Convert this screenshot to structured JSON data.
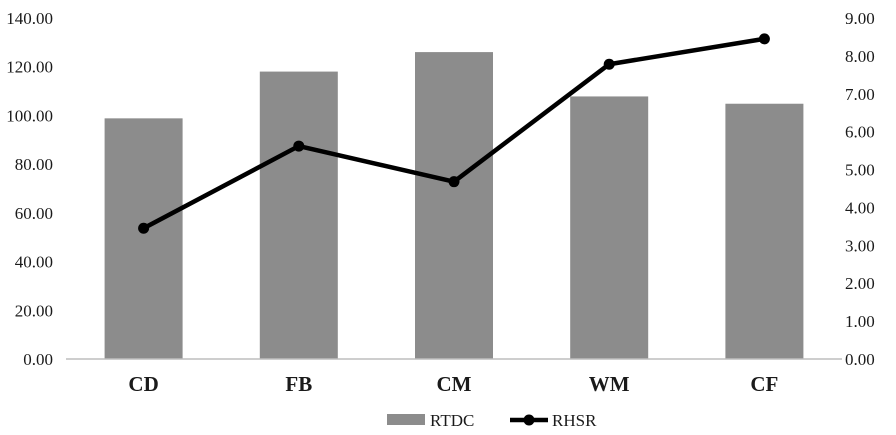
{
  "chart_data": {
    "type": "bar",
    "categories": [
      "CD",
      "FB",
      "CM",
      "WM",
      "CF"
    ],
    "series": [
      {
        "name": "RTDC",
        "type": "bar",
        "axis": "left",
        "values": [
          98.8,
          118.0,
          126.0,
          107.8,
          104.8
        ],
        "color": "#8c8c8c"
      },
      {
        "name": "RHSR",
        "type": "line",
        "axis": "right",
        "values": [
          3.45,
          5.62,
          4.68,
          7.78,
          8.45
        ],
        "color": "#000000"
      }
    ],
    "y_left": {
      "ylim": [
        0,
        140
      ],
      "ticks": [
        "0.00",
        "20.00",
        "40.00",
        "60.00",
        "80.00",
        "100.00",
        "120.00",
        "140.00"
      ]
    },
    "y_right": {
      "ylim": [
        0,
        9
      ],
      "ticks": [
        "0.00",
        "1.00",
        "2.00",
        "3.00",
        "4.00",
        "5.00",
        "6.00",
        "7.00",
        "8.00",
        "9.00"
      ]
    },
    "grid": false,
    "legend": {
      "placement": "bottom-center",
      "entries": [
        "RTDC",
        "RHSR"
      ]
    },
    "title": "",
    "xlabel": "",
    "ylabel": ""
  }
}
